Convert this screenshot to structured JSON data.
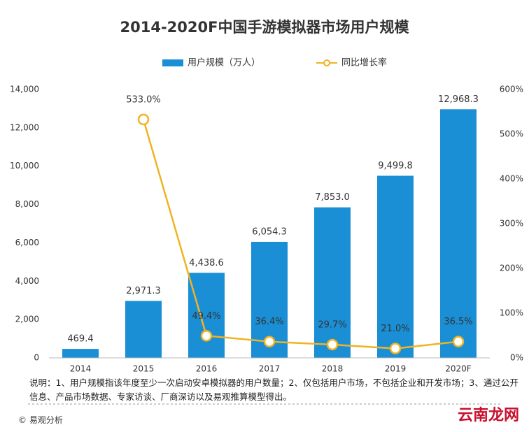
{
  "chart_data": {
    "type": "bar-line",
    "title": "2014-2020F中国手游模拟器市场用户规模",
    "categories": [
      "2014",
      "2015",
      "2016",
      "2017",
      "2018",
      "2019",
      "2020F"
    ],
    "series": [
      {
        "name": "用户规模（万人）",
        "color": "#1a8fd6",
        "type": "bar",
        "values": [
          469.4,
          2971.3,
          4438.6,
          6054.3,
          7853.0,
          9499.8,
          12968.3
        ],
        "value_labels": [
          "469.4",
          "2,971.3",
          "4,438.6",
          "6,054.3",
          "7,853.0",
          "9,499.8",
          "12,968.3"
        ]
      },
      {
        "name": "同比增长率",
        "color": "#f0b323",
        "type": "line",
        "axis": "y2",
        "values": [
          null,
          533.0,
          49.4,
          36.4,
          29.7,
          21.0,
          36.5
        ],
        "value_labels": [
          null,
          "533.0%",
          "49.4%",
          "36.4%",
          "29.7%",
          "21.0%",
          "36.5%"
        ]
      }
    ],
    "ylim": [
      0,
      14000
    ],
    "yticks": [
      0,
      {
        "value": 2000,
        "label": "2,000"
      },
      {
        "value": 4000,
        "label": "4,000"
      },
      {
        "value": 6000,
        "label": "6,000"
      },
      {
        "value": 8000,
        "label": "8,000"
      },
      {
        "value": 10000,
        "label": "10,000"
      },
      {
        "value": 12000,
        "label": "12,000"
      },
      {
        "value": 14000,
        "label": "14,000"
      }
    ],
    "y2lim": [
      0,
      600
    ],
    "y2ticks": [
      {
        "value": 0,
        "label": "0%"
      },
      {
        "value": 100,
        "label": "100%"
      },
      {
        "value": 200,
        "label": "200%"
      },
      {
        "value": 300,
        "label": "300%"
      },
      {
        "value": 400,
        "label": "400%"
      },
      {
        "value": 500,
        "label": "500%"
      },
      {
        "value": 600,
        "label": "600%"
      }
    ],
    "grid": false,
    "note": "说明：1、用户规模指该年度至少一次启动安卓模拟器的用户数量；2、仅包括用户市场，不包括企业和开发市场；3、通过公开信息、产品市场数据、专家访谈、厂商深访以及易观推算模型得出。",
    "source": "© 易观分析",
    "logo": "云南龙网"
  }
}
